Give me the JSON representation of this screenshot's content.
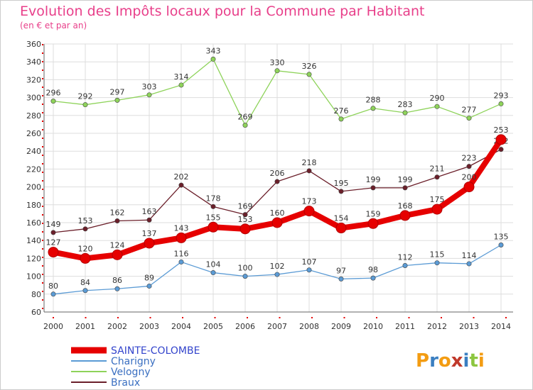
{
  "header": {
    "title": "Evolution des Impôts locaux pour la Commune par Habitant",
    "subtitle": "(en € et par an)"
  },
  "brand": {
    "letters": [
      "P",
      "r",
      "o",
      "x",
      "i",
      "t",
      "i"
    ],
    "colors": [
      "#f39c12",
      "#3a7fc1",
      "#f39c12",
      "#c0392b",
      "#3a7fc1",
      "#8cc63f",
      "#f39c12"
    ]
  },
  "chart_data": {
    "type": "line",
    "categories": [
      "2000",
      "2001",
      "2002",
      "2003",
      "2004",
      "2005",
      "2006",
      "2007",
      "2008",
      "2009",
      "2010",
      "2011",
      "2012",
      "2013",
      "2014"
    ],
    "ylim": [
      60,
      360
    ],
    "yticks": [
      60,
      80,
      100,
      120,
      140,
      160,
      180,
      200,
      220,
      240,
      260,
      280,
      300,
      320,
      340,
      360
    ],
    "grid": true,
    "legend_position": "bottom-left",
    "series": [
      {
        "name": "Velogny",
        "color": "#8ed35a",
        "values": [
          296,
          292,
          297,
          303,
          314,
          343,
          269,
          330,
          326,
          276,
          288,
          283,
          290,
          277,
          293
        ]
      },
      {
        "name": "Charigny",
        "color": "#5b9bd5",
        "values": [
          80,
          84,
          86,
          89,
          116,
          104,
          100,
          102,
          107,
          97,
          98,
          112,
          115,
          114,
          135
        ]
      },
      {
        "name": "Braux",
        "color": "#6b1f2a",
        "values": [
          149,
          153,
          162,
          163,
          202,
          178,
          169,
          206,
          218,
          195,
          199,
          199,
          211,
          223,
          242
        ]
      },
      {
        "name": "SAINTE-COLOMBE",
        "color": "#e60000",
        "values": [
          127,
          120,
          124,
          137,
          143,
          155,
          153,
          160,
          173,
          154,
          159,
          168,
          175,
          200,
          253
        ]
      }
    ]
  }
}
